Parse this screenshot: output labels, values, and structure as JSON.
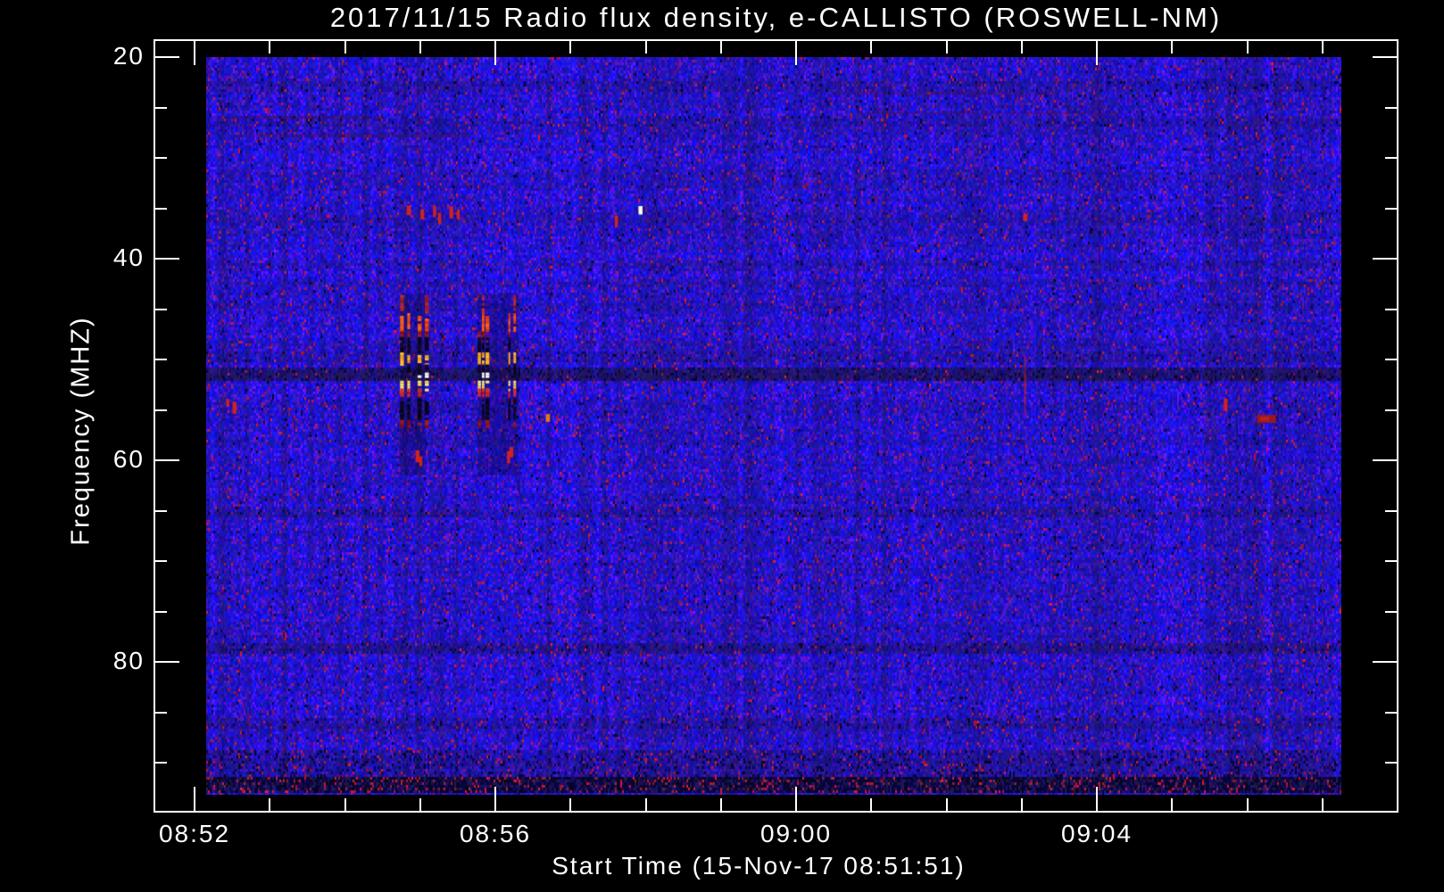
{
  "window": {
    "background_color": "#000000",
    "text_color": "#ffffff"
  },
  "chart_data": {
    "type": "heatmap",
    "subtype": "radio-spectrogram",
    "title": "2017/11/15  Radio flux density, e-CALLISTO (ROSWELL-NM)",
    "date": "2017/11/15",
    "observatory": "e-CALLISTO",
    "station": "ROSWELL-NM",
    "xlabel": "Start Time (15-Nov-17 08:51:51)",
    "ylabel": "Frequency (MHZ)",
    "x_axis": {
      "tick_labels": [
        "08:52",
        "08:56",
        "09:00",
        "09:04"
      ],
      "tick_minutes": [
        52,
        56,
        60,
        64
      ],
      "minor_step_minutes": 1,
      "start_time": "08:51:51",
      "end_time": "09:07:15"
    },
    "y_axis": {
      "tick_labels": [
        "20",
        "40",
        "60",
        "80"
      ],
      "tick_values": [
        20,
        40,
        60,
        80
      ],
      "minor_step_mhz": 5,
      "unit": "MHZ",
      "range_mhz": [
        18.2,
        94.8
      ],
      "direction": "increasing-downward"
    },
    "colormap": {
      "background_blue": "#1a1ad8",
      "purple_noise": "#50208a",
      "speckle_red": "#c22828",
      "burst_orange": "#ff8a00",
      "burst_yellow": "#ffd84a",
      "burst_white": "#fffbe0",
      "saturated_black": "#05051e",
      "axis_white": "#ffffff"
    },
    "events": {
      "bursts": [
        {
          "name": "burst-group-1",
          "time_start": "08:54:44",
          "time_end": "08:55:05",
          "freq_low_mhz": 43.6,
          "freq_high_mhz": 60.5
        },
        {
          "name": "burst-group-2",
          "time_start": "08:55:46",
          "time_end": "08:56:18",
          "freq_low_mhz": 43.6,
          "freq_high_mhz": 60.5
        }
      ],
      "burst_band_structure": [
        {
          "f0": 43.6,
          "f1": 45.4,
          "tone": "faintred"
        },
        {
          "f0": 45.4,
          "f1": 47.2,
          "tone": "orangered"
        },
        {
          "f0": 47.2,
          "f1": 47.8,
          "tone": "darkred"
        },
        {
          "f0": 47.8,
          "f1": 49.3,
          "tone": "black"
        },
        {
          "f0": 49.3,
          "f1": 50.5,
          "tone": "yelloworange"
        },
        {
          "f0": 50.5,
          "f1": 51.2,
          "tone": "black"
        },
        {
          "f0": 51.3,
          "f1": 51.8,
          "tone": "white"
        },
        {
          "f0": 52.1,
          "f1": 52.9,
          "tone": "yellow"
        },
        {
          "f0": 52.9,
          "f1": 53.6,
          "tone": "red"
        },
        {
          "f0": 53.9,
          "f1": 56.0,
          "tone": "black"
        },
        {
          "f0": 56.0,
          "f1": 56.6,
          "tone": "darkred"
        }
      ],
      "rfi_dashes": [
        {
          "t": "08:52:26",
          "f": 54.3,
          "tone": "red"
        },
        {
          "t": "08:52:31",
          "f": 54.8,
          "tone": "red"
        },
        {
          "t": "08:54:50",
          "f": 35.2,
          "tone": "red"
        },
        {
          "t": "08:55:01",
          "f": 35.6,
          "tone": "red"
        },
        {
          "t": "08:55:11",
          "f": 35.3,
          "tone": "red"
        },
        {
          "t": "08:55:15",
          "f": 36.0,
          "tone": "red"
        },
        {
          "t": "08:55:24",
          "f": 35.4,
          "tone": "red"
        },
        {
          "t": "08:55:30",
          "f": 35.6,
          "tone": "red"
        },
        {
          "t": "08:54:57",
          "f": 59.6,
          "tone": "red"
        },
        {
          "t": "08:55:00",
          "f": 60.1,
          "tone": "red"
        },
        {
          "t": "08:56:10",
          "f": 59.7,
          "tone": "red"
        },
        {
          "t": "08:56:12",
          "f": 59.2,
          "tone": "red"
        },
        {
          "t": "08:56:41",
          "f": 55.8,
          "tone": "orange"
        },
        {
          "t": "08:57:36",
          "f": 36.3,
          "tone": "red"
        },
        {
          "t": "08:57:55",
          "f": 35.2,
          "tone": "white"
        },
        {
          "t": "09:03:02",
          "f": 35.9,
          "tone": "red"
        },
        {
          "t": "09:05:42",
          "f": 54.5,
          "tone": "red"
        }
      ],
      "red_streak": {
        "t": "09:03:02",
        "f0": 49.7,
        "f1": 55.2
      },
      "dark_red_blob": {
        "t0": "09:06:08",
        "t1": "09:06:23",
        "f0": 55.5,
        "f1": 56.3
      }
    },
    "background_bands": [
      {
        "f0": 22.6,
        "f1": 23.0,
        "factor": 0.85,
        "black_add": 0.02,
        "red_add": 0
      },
      {
        "f0": 26.1,
        "f1": 26.5,
        "factor": 0.88,
        "black_add": 0.02,
        "red_add": 0
      },
      {
        "f0": 49.4,
        "f1": 49.8,
        "factor": 0.85,
        "black_add": 0.02,
        "red_add": 0
      },
      {
        "f0": 50.8,
        "f1": 51.6,
        "factor": 0.6,
        "black_add": 0.08,
        "red_add": 0
      },
      {
        "f0": 64.8,
        "f1": 65.3,
        "factor": 0.85,
        "black_add": 0.02,
        "red_add": 0
      },
      {
        "f0": 78.4,
        "f1": 78.9,
        "factor": 0.8,
        "black_add": 0.04,
        "red_add": 0.01
      },
      {
        "f0": 85.6,
        "f1": 86.2,
        "factor": 0.82,
        "black_add": 0.03,
        "red_add": 0.01
      },
      {
        "f0": 88.9,
        "f1": 91.4,
        "factor": 0.78,
        "black_add": 0.1,
        "red_add": 0.02
      },
      {
        "f0": 91.6,
        "f1": 92.6,
        "factor": 0.45,
        "black_add": 0.45,
        "red_add": 0.08
      }
    ],
    "wisps": [
      {
        "t0": "08:52:30",
        "t1": "08:54:30",
        "f": 25.8
      },
      {
        "t0": "08:52:50",
        "t1": "08:55:40",
        "f": 27.6
      },
      {
        "t0": "09:00:30",
        "t1": "09:03:30",
        "f": 23.4
      },
      {
        "t0": "09:00:50",
        "t1": "09:04:20",
        "f": 25.4
      }
    ]
  }
}
